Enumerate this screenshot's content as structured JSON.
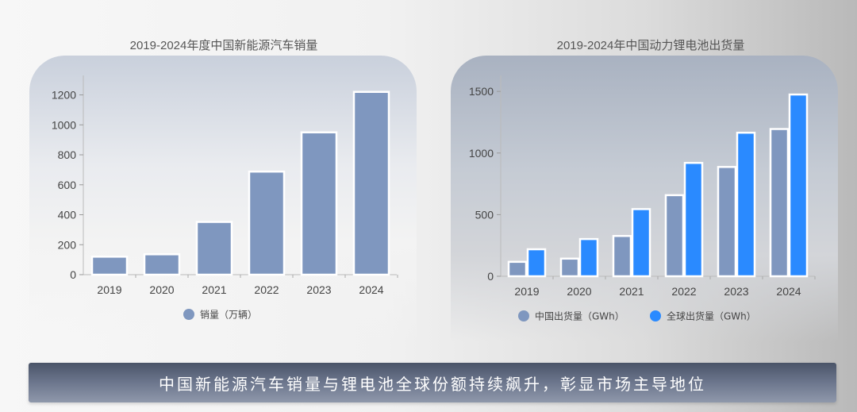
{
  "banner": "中国新能源汽车销量与锂电池全球份额持续飙升，彰显市场主导地位",
  "chart_data": [
    {
      "type": "bar",
      "title": "2019-2024年度中国新能源汽车销量",
      "categories": [
        "2019",
        "2020",
        "2021",
        "2022",
        "2023",
        "2024"
      ],
      "series": [
        {
          "name": "销量（万辆）",
          "values": [
            120,
            136,
            352,
            688,
            950,
            1220
          ],
          "color": "#7f97bf"
        }
      ],
      "ylim": [
        0,
        1330
      ],
      "yticks": [
        0,
        200,
        400,
        600,
        800,
        1000,
        1200
      ],
      "xlabel": "",
      "ylabel": "",
      "legend": "bottom",
      "grid": false
    },
    {
      "type": "bar",
      "title": "2019-2024年中国动力锂电池出货量",
      "categories": [
        "2019",
        "2020",
        "2021",
        "2022",
        "2023",
        "2024"
      ],
      "series": [
        {
          "name": "中国出货量（GWh）",
          "values": [
            117,
            143,
            327,
            658,
            887,
            1195
          ],
          "color": "#7f97bf"
        },
        {
          "name": "全球出货量（GWh）",
          "values": [
            219,
            302,
            545,
            920,
            1165,
            1475
          ],
          "color": "#2a8aff"
        }
      ],
      "ylim": [
        0,
        1630
      ],
      "yticks": [
        0,
        500,
        1000,
        1500
      ],
      "xlabel": "",
      "ylabel": "",
      "legend": "bottom",
      "grid": false
    }
  ]
}
